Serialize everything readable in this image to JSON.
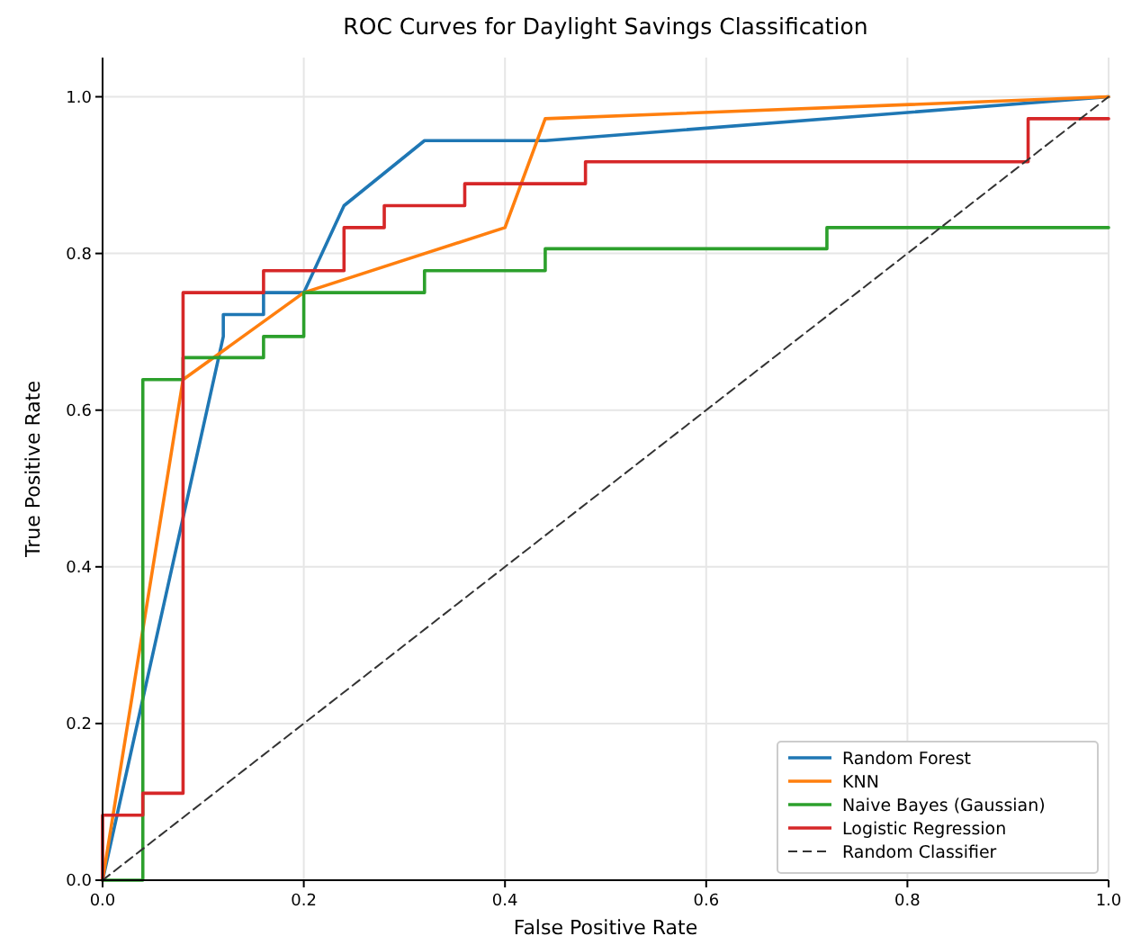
{
  "chart_data": {
    "type": "line",
    "title": "ROC Curves for Daylight Savings Classification",
    "xlabel": "False Positive Rate",
    "ylabel": "True Positive Rate",
    "xlim": [
      0,
      1
    ],
    "ylim": [
      0,
      1.05
    ],
    "xticks": [
      {
        "value": 0,
        "label": "0.0"
      },
      {
        "value": 0.2,
        "label": "0.2"
      },
      {
        "value": 0.4,
        "label": "0.4"
      },
      {
        "value": 0.6,
        "label": "0.6"
      },
      {
        "value": 0.8,
        "label": "0.8"
      },
      {
        "value": 1,
        "label": "1.0"
      }
    ],
    "yticks": [
      {
        "value": 0,
        "label": "0.0"
      },
      {
        "value": 0.2,
        "label": "0.2"
      },
      {
        "value": 0.4,
        "label": "0.4"
      },
      {
        "value": 0.6,
        "label": "0.6"
      },
      {
        "value": 0.8,
        "label": "0.8"
      },
      {
        "value": 1,
        "label": "1.0"
      }
    ],
    "grid": true,
    "legend": "bottom right",
    "marker": "none",
    "series": [
      {
        "name": "Random Forest",
        "color": "#1f77b4",
        "x": [
          0,
          0.12,
          0.12,
          0.16,
          0.16,
          0.2,
          0.24,
          0.32,
          0.44,
          1
        ],
        "values": [
          0,
          0.694,
          0.722,
          0.722,
          0.75,
          0.75,
          0.861,
          0.944,
          0.944,
          1
        ]
      },
      {
        "name": "KNN",
        "color": "#ff7f0e",
        "x": [
          0,
          0.08,
          0.2,
          0.4,
          0.44,
          1
        ],
        "values": [
          0,
          0.639,
          0.75,
          0.833,
          0.972,
          1
        ]
      },
      {
        "name": "Naive Bayes (Gaussian)",
        "color": "#2ca02c",
        "x": [
          0,
          0.04,
          0.04,
          0.08,
          0.08,
          0.16,
          0.16,
          0.2,
          0.2,
          0.32,
          0.32,
          0.44,
          0.44,
          0.72,
          0.72,
          1
        ],
        "values": [
          0,
          0,
          0.639,
          0.639,
          0.667,
          0.667,
          0.694,
          0.694,
          0.75,
          0.75,
          0.778,
          0.778,
          0.806,
          0.806,
          0.833,
          0.833
        ]
      },
      {
        "name": "Logistic Regression",
        "color": "#d62728",
        "x": [
          0,
          0,
          0.04,
          0.04,
          0.08,
          0.08,
          0.16,
          0.16,
          0.24,
          0.24,
          0.28,
          0.28,
          0.36,
          0.36,
          0.48,
          0.48,
          0.92,
          0.92,
          1
        ],
        "values": [
          0,
          0.083,
          0.083,
          0.111,
          0.111,
          0.75,
          0.75,
          0.778,
          0.778,
          0.833,
          0.833,
          0.861,
          0.861,
          0.889,
          0.889,
          0.917,
          0.917,
          0.972,
          0.972
        ]
      },
      {
        "name": "Random Classifier",
        "color": "#333333",
        "line_style": "dashed",
        "x": [
          0,
          1
        ],
        "values": [
          0,
          1
        ]
      }
    ]
  }
}
